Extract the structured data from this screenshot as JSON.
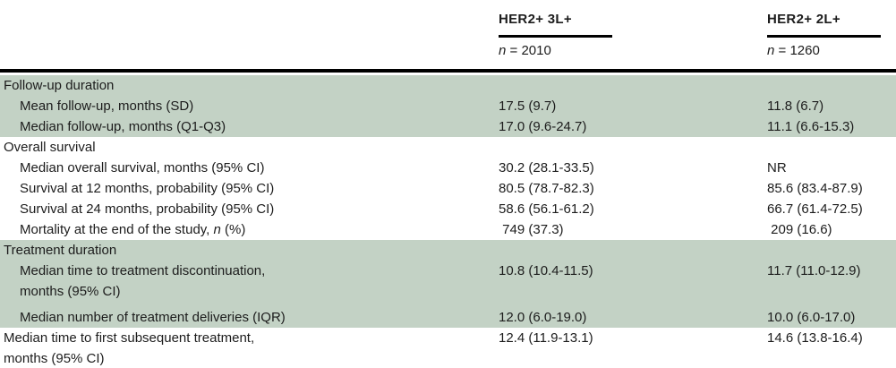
{
  "colors": {
    "band_green": "#c3d2c5",
    "rule_black": "#000000",
    "text": "#1c1c1c"
  },
  "table": {
    "columns": [
      {
        "title": "HER2+ 3L+",
        "n_italic": "n",
        "n_rest": " = 2010"
      },
      {
        "title": "HER2+ 2L+",
        "n_italic": "n",
        "n_rest": " = 1260"
      }
    ],
    "rows": [
      {
        "label": "Follow-up duration",
        "v1": "",
        "v2": ""
      },
      {
        "label": "Mean follow-up, months (SD)",
        "v1": "17.5 (9.7)",
        "v2": "11.8 (6.7)"
      },
      {
        "label": "Median follow-up, months (Q1-Q3)",
        "v1": "17.0 (9.6-24.7)",
        "v2": "11.1 (6.6-15.3)"
      },
      {
        "label": "Overall survival",
        "v1": "",
        "v2": ""
      },
      {
        "label": "Median overall survival, months (95% CI)",
        "v1": "30.2 (28.1-33.5)",
        "v2": "NR"
      },
      {
        "label": "Survival at 12 months, probability (95% CI)",
        "v1": "80.5 (78.7-82.3)",
        "v2": "85.6 (83.4-87.9)"
      },
      {
        "label": "Survival at 24 months, probability (95% CI)",
        "v1": "58.6 (56.1-61.2)",
        "v2": "66.7 (61.4-72.5)"
      },
      {
        "label_pre": "Mortality at the end of the study, ",
        "label_it": "n",
        "label_post": " (%)",
        "v1": " 749 (37.3)",
        "v2": " 209 (16.6)"
      },
      {
        "label": "Treatment duration",
        "v1": "",
        "v2": ""
      },
      {
        "label": "Median time to treatment discontinuation,\nmonths (95% CI)",
        "v1": "10.8 (10.4-11.5)",
        "v2": "11.7 (11.0-12.9)"
      },
      {
        "label": "Median number of treatment deliveries (IQR)",
        "v1": "12.0 (6.0-19.0)",
        "v2": "10.0 (6.0-17.0)"
      },
      {
        "label": "Median time to first subsequent treatment,\nmonths (95% CI)",
        "v1": "12.4 (11.9-13.1)",
        "v2": "14.6 (13.8-16.4)"
      }
    ]
  }
}
